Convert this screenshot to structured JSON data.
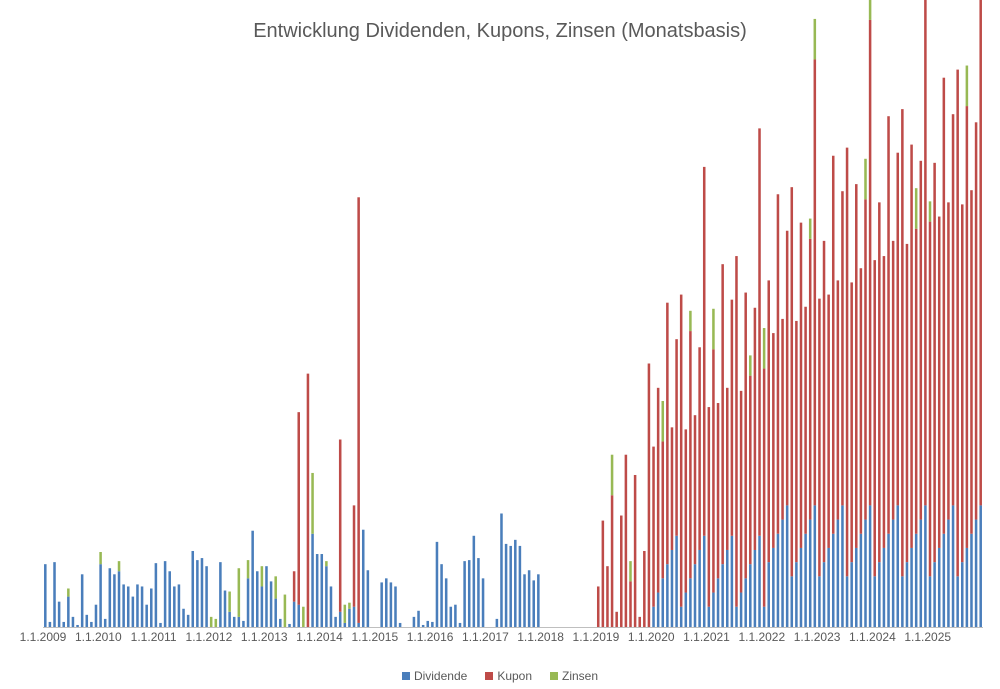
{
  "chart_data": {
    "type": "bar",
    "stacked": true,
    "title": "Entwicklung Dividenden, Kupons, Zinsen (Monatsbasis)",
    "xlabel": "",
    "ylabel": "",
    "ylim": [
      0,
      520
    ],
    "grid": false,
    "legend_position": "bottom",
    "x_tick_labels": [
      "1.1.2009",
      "1.1.2010",
      "1.1.2011",
      "1.1.2012",
      "1.1.2013",
      "1.1.2014",
      "1.1.2015",
      "1.1.2016",
      "1.1.2017",
      "1.1.2018",
      "1.1.2019",
      "1.1.2020",
      "1.1.2021",
      "1.1.2022",
      "1.1.2023",
      "1.1.2024",
      "1.1.2025"
    ],
    "start_month": "2009-01",
    "months": 204,
    "series": [
      {
        "name": "Dividende",
        "color": "#4a7ebb",
        "values": [
          60,
          0,
          64,
          25,
          0,
          30,
          0,
          0,
          52,
          0,
          0,
          0,
          62,
          20,
          0,
          0,
          60,
          0,
          0,
          0,
          0,
          0,
          0,
          0,
          45,
          48,
          0,
          0,
          0,
          0,
          0,
          0,
          40,
          0,
          0,
          0,
          60,
          0,
          0,
          0,
          0,
          0,
          0,
          0,
          0,
          0,
          0,
          0,
          50,
          0,
          0,
          0,
          0,
          0,
          0,
          0,
          0,
          0,
          0,
          0,
          0,
          0,
          0,
          0,
          0,
          0,
          0,
          0,
          0,
          0,
          0,
          0,
          60,
          0,
          0,
          0,
          0,
          0,
          0,
          0,
          0,
          0,
          0,
          0,
          0,
          0,
          0,
          0,
          0,
          0,
          0,
          0,
          0,
          0,
          0,
          0,
          0,
          0,
          0,
          0,
          0,
          0,
          0,
          0,
          0,
          0,
          0,
          0,
          0,
          0,
          0,
          0,
          0,
          0,
          0,
          0,
          0,
          0,
          0,
          0,
          0,
          0,
          0,
          0,
          0,
          0,
          0,
          0,
          0,
          0,
          0,
          0,
          0,
          0,
          0,
          0,
          0,
          0,
          0,
          0,
          0,
          0,
          0,
          0,
          0,
          0,
          0,
          0,
          0,
          0,
          0,
          0,
          0,
          0,
          0,
          0,
          0,
          0,
          0,
          0,
          0,
          0,
          0,
          0,
          0,
          0,
          0,
          0,
          0,
          0,
          0,
          0,
          0,
          0,
          0,
          0,
          0,
          0,
          0,
          0,
          0,
          0,
          0,
          0,
          0,
          0,
          0,
          0,
          0,
          0,
          0,
          0,
          0,
          0,
          0,
          0,
          0,
          0,
          0,
          0,
          0,
          0,
          0,
          0,
          0
        ]
      },
      {
        "name": "Kupon",
        "color": "#be4b48",
        "values": []
      },
      {
        "name": "Zinsen",
        "color": "#98b954",
        "values": []
      }
    ]
  },
  "legend": {
    "dividende": "Dividende",
    "kupon": "Kupon",
    "zinsen": "Zinsen"
  }
}
